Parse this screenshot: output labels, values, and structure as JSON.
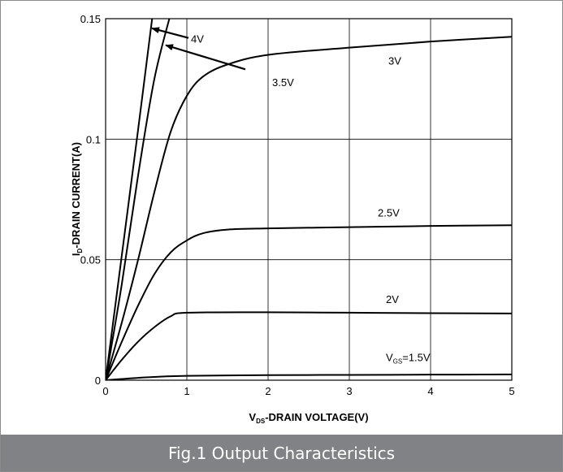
{
  "caption": "Fig.1 Output Characteristics",
  "chart_data": {
    "type": "line",
    "xlabel_main": "V",
    "xlabel_sub": "DS",
    "xlabel_rest": "-DRAIN VOLTAGE(V)",
    "ylabel_main": "I",
    "ylabel_sub": "D",
    "ylabel_rest": "-DRAIN CURRENT(A)",
    "xlim": [
      0,
      5
    ],
    "ylim": [
      0,
      0.15
    ],
    "xticks": [
      0,
      1,
      2,
      3,
      4,
      5
    ],
    "xtick_labels": [
      "0",
      "1",
      "2",
      "3",
      "4",
      "5"
    ],
    "yticks": [
      0,
      0.05,
      0.1,
      0.15
    ],
    "ytick_labels": [
      "0",
      "0.05",
      "0.1",
      "0.15"
    ],
    "grid": true,
    "line_color": "#000000",
    "series": [
      {
        "name": "V",
        "name_sub": "GS",
        "name_rest": "=1.5V",
        "label_at": [
          3.45,
          0.008
        ],
        "points": [
          [
            0,
            0
          ],
          [
            0.5,
            0.0012
          ],
          [
            1,
            0.0018
          ],
          [
            2,
            0.0021
          ],
          [
            3,
            0.0022
          ],
          [
            4,
            0.0023
          ],
          [
            5,
            0.0024
          ]
        ]
      },
      {
        "name": "2V",
        "label_at": [
          3.45,
          0.032
        ],
        "points": [
          [
            0,
            0
          ],
          [
            0.2,
            0.0085
          ],
          [
            0.4,
            0.016
          ],
          [
            0.6,
            0.022
          ],
          [
            0.8,
            0.0265
          ],
          [
            1,
            0.028
          ],
          [
            2,
            0.0282
          ],
          [
            3,
            0.028
          ],
          [
            4,
            0.0278
          ],
          [
            5,
            0.0277
          ]
        ]
      },
      {
        "name": "2.5V",
        "label_at": [
          3.35,
          0.068
        ],
        "points": [
          [
            0,
            0
          ],
          [
            0.2,
            0.016
          ],
          [
            0.4,
            0.031
          ],
          [
            0.6,
            0.044
          ],
          [
            0.8,
            0.053
          ],
          [
            1,
            0.058
          ],
          [
            1.2,
            0.061
          ],
          [
            1.5,
            0.0625
          ],
          [
            2,
            0.063
          ],
          [
            3,
            0.0635
          ],
          [
            4,
            0.064
          ],
          [
            5,
            0.0643
          ]
        ]
      },
      {
        "name": "3V",
        "label_at": [
          3.48,
          0.131
        ],
        "points": [
          [
            0,
            0
          ],
          [
            0.2,
            0.024
          ],
          [
            0.4,
            0.05
          ],
          [
            0.6,
            0.078
          ],
          [
            0.8,
            0.103
          ],
          [
            1,
            0.118
          ],
          [
            1.2,
            0.126
          ],
          [
            1.5,
            0.131
          ],
          [
            2,
            0.135
          ],
          [
            3,
            0.138
          ],
          [
            4,
            0.1405
          ],
          [
            5,
            0.1425
          ]
        ]
      },
      {
        "name": "3.5V",
        "label_at": null,
        "points": [
          [
            0,
            0
          ],
          [
            0.2,
            0.04
          ],
          [
            0.4,
            0.085
          ],
          [
            0.6,
            0.125
          ],
          [
            0.8,
            0.152
          ]
        ]
      },
      {
        "name": "4V",
        "label_at": null,
        "points": [
          [
            0,
            0
          ],
          [
            0.2,
            0.052
          ],
          [
            0.4,
            0.104
          ],
          [
            0.58,
            0.152
          ]
        ]
      }
    ],
    "annotations": [
      {
        "text": "4V",
        "text_at": [
          1.05,
          0.14
        ],
        "arrow_from": [
          1.02,
          0.142
        ],
        "arrow_to": [
          0.57,
          0.146
        ]
      },
      {
        "text": "3.5V",
        "text_at": [
          2.05,
          0.122
        ],
        "arrow_from": [
          1.72,
          0.129
        ],
        "arrow_to": [
          0.74,
          0.139
        ]
      }
    ]
  }
}
